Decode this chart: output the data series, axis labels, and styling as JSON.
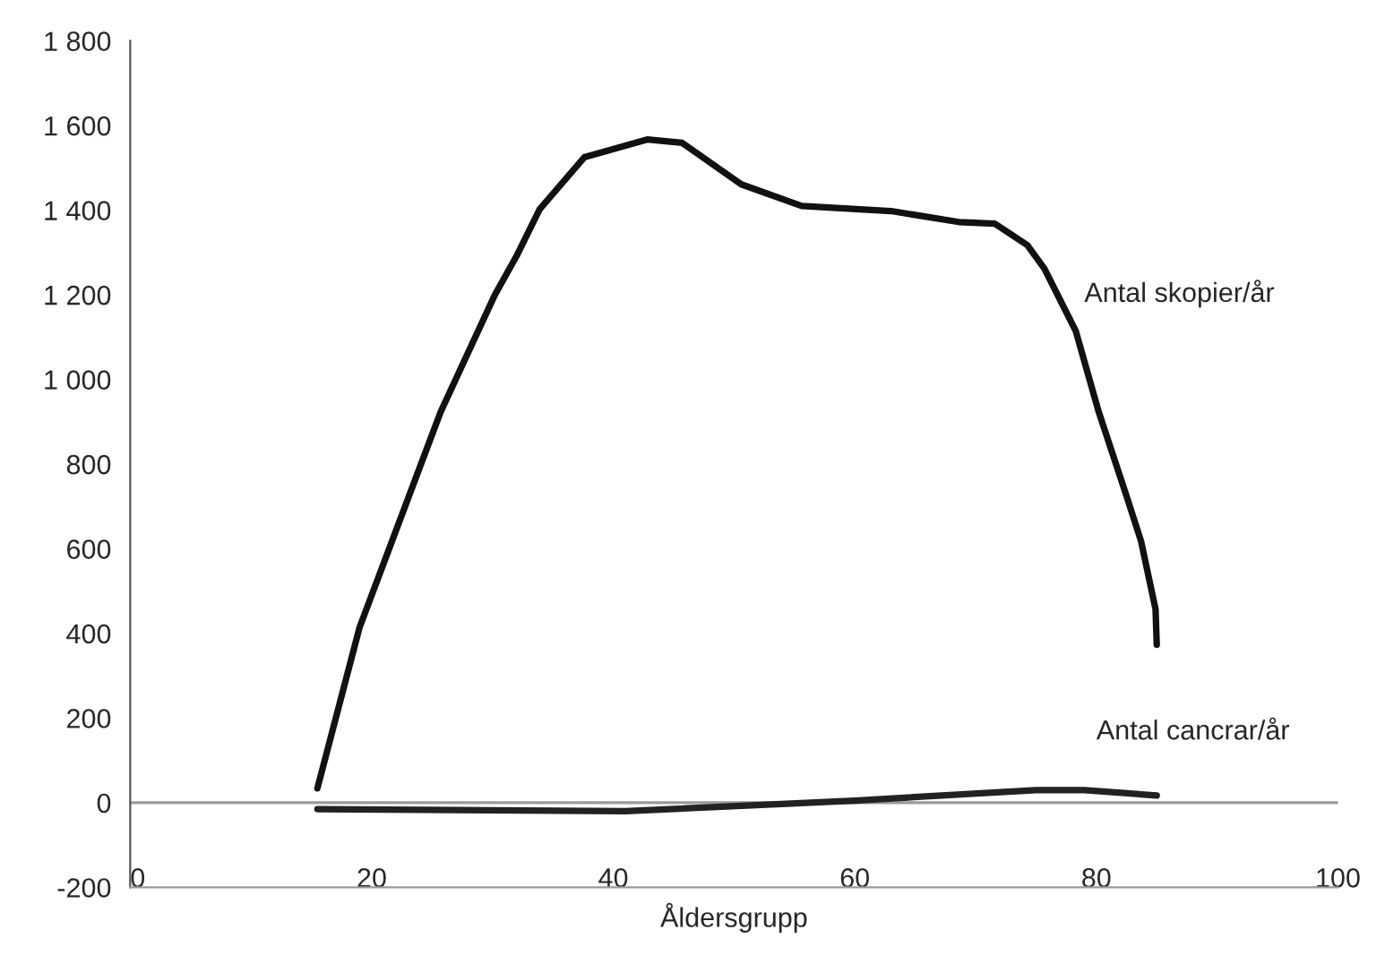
{
  "chart_data": {
    "type": "line",
    "xlabel": "Åldersgrupp",
    "xlim": [
      0,
      100
    ],
    "xticks": [
      0,
      20,
      40,
      60,
      80,
      100
    ],
    "ylim": [
      -200,
      1800
    ],
    "yticks": [
      {
        "value": -200,
        "label": "-200"
      },
      0,
      200,
      400,
      600,
      800,
      {
        "value": 1000,
        "label": "1 000"
      },
      {
        "value": 1200,
        "label": "1 200"
      },
      {
        "value": 1400,
        "label": "1 400"
      },
      {
        "value": 1600,
        "label": "1 600"
      },
      {
        "value": 1800,
        "label": "1 800"
      }
    ],
    "grid": false,
    "legend": false,
    "marker": "none",
    "line_style": "solid",
    "ref_lines": [
      {
        "axis": "y",
        "value": 0,
        "label": null,
        "color": "#9a9a9a"
      }
    ],
    "series": [
      {
        "name": "Antal skopier/år",
        "color": "#111111",
        "x": [
          15.5,
          19,
          25.7,
          30.2,
          32,
          33.9,
          37.6,
          42.8,
          45.7,
          50.6,
          55.6,
          63,
          68.6,
          71.6,
          74.3,
          75.7,
          78.3,
          80.2,
          82.4,
          83.7,
          84.9,
          85
        ],
        "values": [
          34,
          415,
          923,
          1200,
          1292,
          1402,
          1525,
          1567,
          1559,
          1461,
          1410,
          1398,
          1372,
          1368,
          1317,
          1262,
          1114,
          923,
          733,
          618,
          457,
          373
        ]
      },
      {
        "name": "Antal cancrar/år",
        "color": "#222222",
        "x": [
          15.5,
          41,
          60,
          75,
          79,
          85
        ],
        "values": [
          -15,
          -20,
          5,
          30,
          30,
          17
        ]
      }
    ]
  }
}
